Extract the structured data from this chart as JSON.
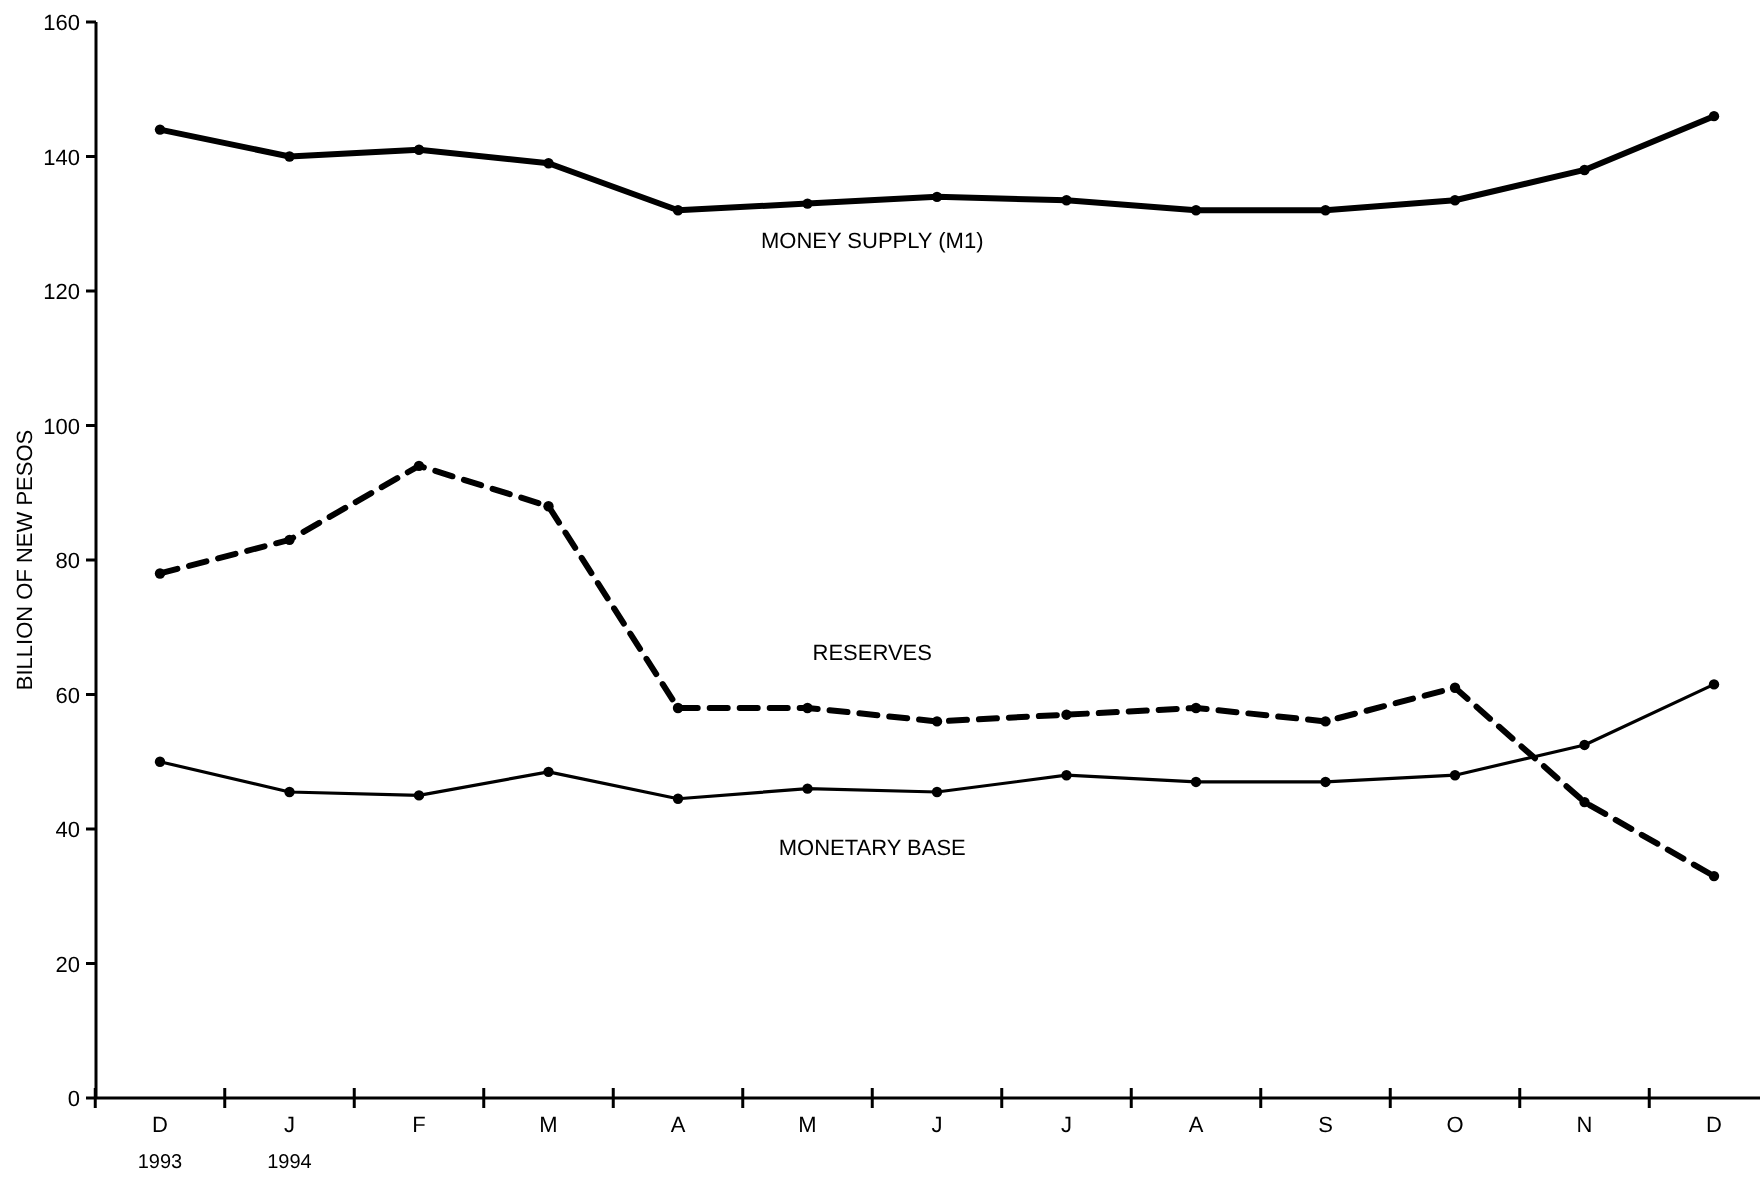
{
  "chart_data": {
    "type": "line",
    "ylabel": "BILLION OF NEW PESOS",
    "categories": [
      "D\n1993",
      "J\n1994",
      "F",
      "M",
      "A",
      "M",
      "J",
      "J",
      "A",
      "S",
      "O",
      "N",
      "D"
    ],
    "ylim": [
      0,
      160
    ],
    "yticks": [
      0,
      20,
      40,
      60,
      80,
      100,
      120,
      140,
      160
    ],
    "grid": false,
    "marker": "circle",
    "series": [
      {
        "name": "MONEY SUPPLY (M1)",
        "color": "#000000",
        "line_style": "solid",
        "values": [
          144,
          140,
          141,
          139,
          132,
          133,
          134,
          133.5,
          132,
          132,
          133.5,
          138,
          146
        ]
      },
      {
        "name": "RESERVES",
        "color": "#000000",
        "line_style": "dashed",
        "values": [
          78,
          83,
          94,
          88,
          58,
          58,
          56,
          57,
          58,
          56,
          61,
          44,
          33
        ]
      },
      {
        "name": "MONETARY BASE",
        "color": "#000000",
        "line_style": "solid",
        "values": [
          50,
          45.5,
          45,
          48.5,
          44.5,
          46,
          45.5,
          48,
          47,
          47,
          48,
          52.5,
          61.5
        ]
      }
    ]
  }
}
